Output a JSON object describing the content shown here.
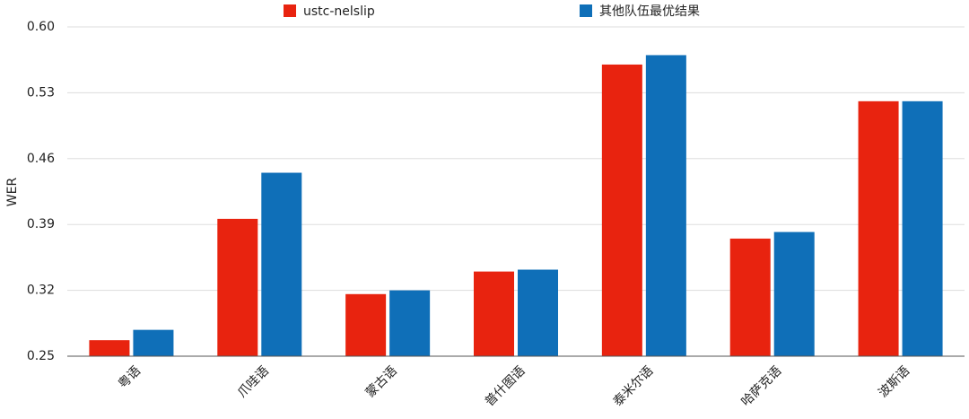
{
  "chart_data": {
    "type": "bar",
    "y_label": "WER",
    "categories": [
      "粤语",
      "爪哇语",
      "蒙古语",
      "普什图语",
      "泰米尔语",
      "哈萨克语",
      "波斯语"
    ],
    "series": [
      {
        "name": "ustc-nelslip",
        "color": "#e8230f",
        "values": [
          0.267,
          0.396,
          0.316,
          0.34,
          0.56,
          0.375,
          0.521
        ]
      },
      {
        "name": "其他队伍最优结果",
        "color": "#0f6fb8",
        "values": [
          0.278,
          0.445,
          0.32,
          0.342,
          0.57,
          0.382,
          0.521
        ]
      }
    ],
    "ylim": [
      0.25,
      0.6
    ],
    "yticks": [
      0.25,
      0.32,
      0.39,
      0.46,
      0.53,
      {
        "value": 0.6,
        "label": "0.60"
      }
    ],
    "grid": true
  }
}
